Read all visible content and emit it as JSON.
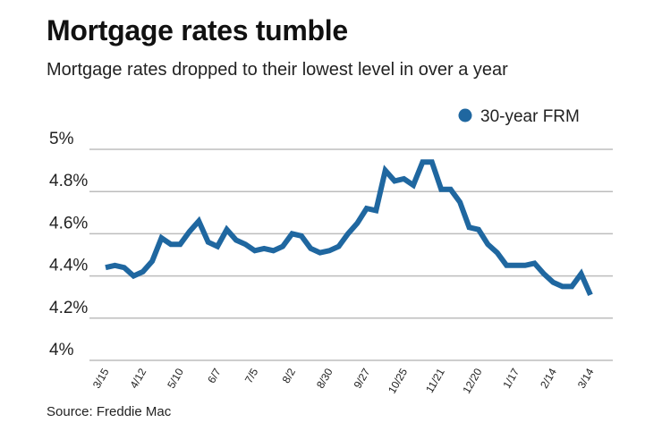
{
  "chart_data": {
    "type": "line",
    "title": "Mortgage rates tumble",
    "subtitle": "Mortgage rates dropped to their lowest level in over a year",
    "source": "Source: Freddie Mac",
    "legend_position": "top-right",
    "grid": true,
    "ylim": [
      4,
      5
    ],
    "yticks": [
      4,
      4.2,
      4.4,
      4.6,
      4.8,
      5
    ],
    "ytick_labels": [
      "4%",
      "4.2%",
      "4.4%",
      "4.6%",
      "4.8%",
      "5%"
    ],
    "xtick_labels": [
      "3/15",
      "4/12",
      "5/10",
      "6/7",
      "7/5",
      "8/2",
      "8/30",
      "9/27",
      "10/25",
      "11/21",
      "12/20",
      "1/17",
      "2/14",
      "3/14"
    ],
    "xtick_every": 4,
    "series": [
      {
        "name": "30-year FRM",
        "color": "#1f67a0",
        "values": [
          4.44,
          4.45,
          4.44,
          4.4,
          4.42,
          4.47,
          4.58,
          4.55,
          4.55,
          4.61,
          4.66,
          4.56,
          4.54,
          4.62,
          4.57,
          4.55,
          4.52,
          4.53,
          4.52,
          4.54,
          4.6,
          4.59,
          4.53,
          4.51,
          4.52,
          4.54,
          4.6,
          4.65,
          4.72,
          4.71,
          4.9,
          4.85,
          4.86,
          4.83,
          4.94,
          4.94,
          4.81,
          4.81,
          4.75,
          4.63,
          4.62,
          4.55,
          4.51,
          4.45,
          4.45,
          4.45,
          4.46,
          4.41,
          4.37,
          4.35,
          4.35,
          4.41,
          4.31
        ]
      }
    ]
  }
}
